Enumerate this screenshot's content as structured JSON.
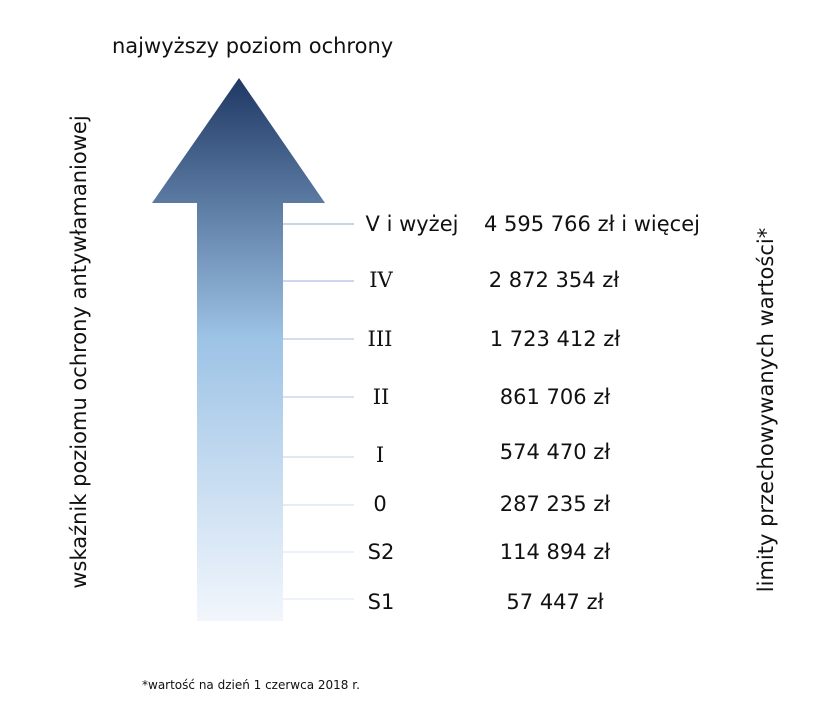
{
  "title": "najwyższy poziom ochrony",
  "left_label": "wskaźnik poziomu ochrony antywłamaniowej",
  "right_label": "limity przechowywanych wartości*",
  "footnote": "*wartość na dzień 1 czerwca 2018 r.",
  "colors": {
    "arrow_top": "#1f3864",
    "arrow_mid": "#9dc3e6",
    "arrow_bottom": "#f2f6fc",
    "tick_line": "#8eaadb"
  },
  "levels": [
    {
      "label": "V i wyżej",
      "value": "4 595 766 zł i więcej"
    },
    {
      "label": "IV",
      "value": "2 872 354 zł"
    },
    {
      "label": "III",
      "value": "1 723 412 zł"
    },
    {
      "label": "II",
      "value": "861 706 zł"
    },
    {
      "label": "I",
      "value": "574 470 zł"
    },
    {
      "label": "0",
      "value": "287 235 zł"
    },
    {
      "label": "S2",
      "value": "114 894 zł"
    },
    {
      "label": "S1",
      "value": "57 447 zł"
    }
  ]
}
